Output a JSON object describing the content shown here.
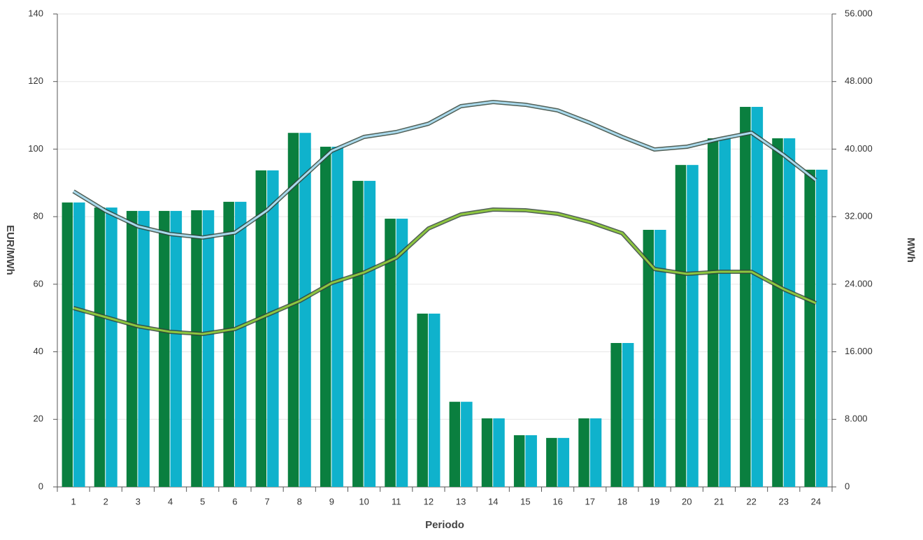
{
  "chart_data": {
    "type": "bar",
    "x_label": "Periodo",
    "y_label": "EUR/MWh",
    "y2_label": "MWh",
    "categories": [
      "1",
      "2",
      "3",
      "4",
      "5",
      "6",
      "7",
      "8",
      "9",
      "10",
      "11",
      "12",
      "13",
      "14",
      "15",
      "16",
      "17",
      "18",
      "19",
      "20",
      "21",
      "22",
      "23",
      "24"
    ],
    "ylim": [
      0,
      140
    ],
    "yticks": [
      0,
      20,
      40,
      60,
      80,
      100,
      120,
      140
    ],
    "y2lim": [
      0,
      56000
    ],
    "y2ticks": [
      0,
      {
        "value": 8000,
        "label": "8.000"
      },
      {
        "value": 16000,
        "label": "16.000"
      },
      {
        "value": 24000,
        "label": "24.000"
      },
      {
        "value": 32000,
        "label": "32.000"
      },
      {
        "value": 40000,
        "label": "40.000"
      },
      {
        "value": 48000,
        "label": "48.000"
      },
      {
        "value": 56000,
        "label": "56.000"
      }
    ],
    "grid": true,
    "series": [
      {
        "type": "bar",
        "color": "#0a7f3f",
        "values": [
          84.2,
          82.7,
          81.7,
          81.7,
          81.9,
          84.4,
          93.7,
          104.8,
          100.7,
          90.6,
          79.4,
          51.3,
          25.2,
          20.3,
          15.3,
          14.5,
          20.3,
          42.6,
          76.1,
          95.3,
          103.2,
          112.5,
          103.2,
          93.9
        ]
      },
      {
        "type": "bar",
        "color": "#0fb2cc",
        "values": [
          84.2,
          82.7,
          81.7,
          81.7,
          81.9,
          84.4,
          93.7,
          104.8,
          100.7,
          90.6,
          79.4,
          51.3,
          25.2,
          20.3,
          15.3,
          14.5,
          20.3,
          42.6,
          76.1,
          95.3,
          103.2,
          112.5,
          103.2,
          93.9
        ]
      },
      {
        "type": "line",
        "axis": "y2",
        "color": "#a9d9ec",
        "values": [
          35000,
          32670,
          30850,
          29940,
          29530,
          30110,
          32760,
          36310,
          39790,
          41440,
          42020,
          43010,
          45080,
          45580,
          45250,
          44580,
          43100,
          41440,
          39950,
          40280,
          41190,
          41940,
          39290,
          36310
        ]
      },
      {
        "type": "line",
        "axis": "y2",
        "color": "#8dc63f",
        "values": [
          21180,
          20100,
          19020,
          18360,
          18110,
          18690,
          20350,
          22000,
          24150,
          25390,
          27130,
          30610,
          32260,
          32840,
          32760,
          32340,
          31350,
          30030,
          25800,
          25230,
          25480,
          25480,
          23410,
          21750
        ]
      }
    ]
  }
}
